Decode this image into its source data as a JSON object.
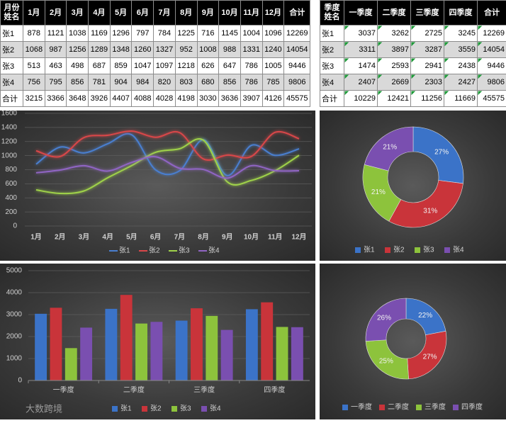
{
  "tables": [
    {
      "corner": [
        "月份",
        "姓名"
      ],
      "columns": [
        "1月",
        "2月",
        "3月",
        "4月",
        "5月",
        "6月",
        "7月",
        "8月",
        "9月",
        "10月",
        "11月",
        "12月",
        "合计"
      ],
      "rows": [
        [
          "张1",
          878,
          1121,
          1038,
          1169,
          1296,
          797,
          784,
          1225,
          716,
          1145,
          1004,
          1096,
          12269
        ],
        [
          "张2",
          1068,
          987,
          1256,
          1289,
          1348,
          1260,
          1327,
          952,
          1008,
          988,
          1331,
          1240,
          14054
        ],
        [
          "张3",
          513,
          463,
          498,
          687,
          859,
          1047,
          1097,
          1218,
          626,
          647,
          786,
          1005,
          9446
        ],
        [
          "张4",
          756,
          795,
          856,
          781,
          904,
          984,
          820,
          803,
          680,
          856,
          786,
          785,
          9806
        ],
        [
          "合计",
          3215,
          3366,
          3648,
          3926,
          4407,
          4088,
          4028,
          4198,
          3030,
          3636,
          3907,
          4126,
          45575
        ]
      ]
    },
    {
      "corner": [
        "季度",
        "姓名"
      ],
      "columns": [
        "一季度",
        "二季度",
        "三季度",
        "四季度",
        "合计"
      ],
      "rows": [
        [
          "张1",
          3037,
          3262,
          2725,
          3245,
          12269
        ],
        [
          "张2",
          3311,
          3897,
          3287,
          3559,
          14054
        ],
        [
          "张3",
          1474,
          2593,
          2941,
          2438,
          9446
        ],
        [
          "张4",
          2407,
          2669,
          2303,
          2427,
          9806
        ],
        [
          "合计",
          10229,
          12421,
          11256,
          11669,
          45575
        ]
      ]
    }
  ],
  "chart_data": [
    {
      "type": "line",
      "categories": [
        "1月",
        "2月",
        "3月",
        "4月",
        "5月",
        "6月",
        "7月",
        "8月",
        "9月",
        "10月",
        "11月",
        "12月"
      ],
      "series": [
        {
          "name": "张1",
          "color": "#4a7fd0",
          "values": [
            878,
            1121,
            1038,
            1169,
            1296,
            797,
            784,
            1225,
            716,
            1145,
            1004,
            1096
          ]
        },
        {
          "name": "张2",
          "color": "#d9474a",
          "values": [
            1068,
            987,
            1256,
            1289,
            1348,
            1260,
            1327,
            952,
            1008,
            988,
            1331,
            1240
          ]
        },
        {
          "name": "张3",
          "color": "#9fd24a",
          "values": [
            513,
            463,
            498,
            687,
            859,
            1047,
            1097,
            1218,
            626,
            647,
            786,
            1005
          ]
        },
        {
          "name": "张4",
          "color": "#9065c4",
          "values": [
            756,
            795,
            856,
            781,
            904,
            984,
            820,
            803,
            680,
            856,
            786,
            785
          ]
        }
      ],
      "ylim": [
        0,
        1600
      ],
      "yticks": [
        0,
        200,
        400,
        600,
        800,
        1000,
        1200,
        1400,
        1600
      ],
      "grid": true,
      "legend": "bottom"
    },
    {
      "type": "donut",
      "categories": [
        "张1",
        "张2",
        "张3",
        "张4"
      ],
      "colors": [
        "#3b73c8",
        "#c9343a",
        "#8dc33c",
        "#7a4fb0"
      ],
      "values": [
        27,
        31,
        21,
        21
      ],
      "value_labels": [
        "27%",
        "31%",
        "21%",
        "21%"
      ],
      "legend": "bottom"
    },
    {
      "type": "bar",
      "categories": [
        "一季度",
        "二季度",
        "三季度",
        "四季度"
      ],
      "series": [
        {
          "name": "张1",
          "color": "#3b73c8",
          "values": [
            3037,
            3262,
            2725,
            3245
          ]
        },
        {
          "name": "张2",
          "color": "#c9343a",
          "values": [
            3311,
            3897,
            3287,
            3559
          ]
        },
        {
          "name": "张3",
          "color": "#8dc33c",
          "values": [
            1474,
            2593,
            2941,
            2438
          ]
        },
        {
          "name": "张4",
          "color": "#7a4fb0",
          "values": [
            2407,
            2669,
            2303,
            2427
          ]
        }
      ],
      "ylim": [
        0,
        5000
      ],
      "yticks": [
        0,
        1000,
        2000,
        3000,
        4000,
        5000
      ],
      "grid": true,
      "legend": "bottom"
    },
    {
      "type": "donut",
      "categories": [
        "一季度",
        "二季度",
        "三季度",
        "四季度"
      ],
      "colors": [
        "#3b73c8",
        "#c9343a",
        "#8dc33c",
        "#7a4fb0"
      ],
      "values": [
        22,
        27,
        25,
        26
      ],
      "value_labels": [
        "22%",
        "27%",
        "25%",
        "26%"
      ],
      "legend": "bottom"
    }
  ],
  "watermark": "大数跨境"
}
